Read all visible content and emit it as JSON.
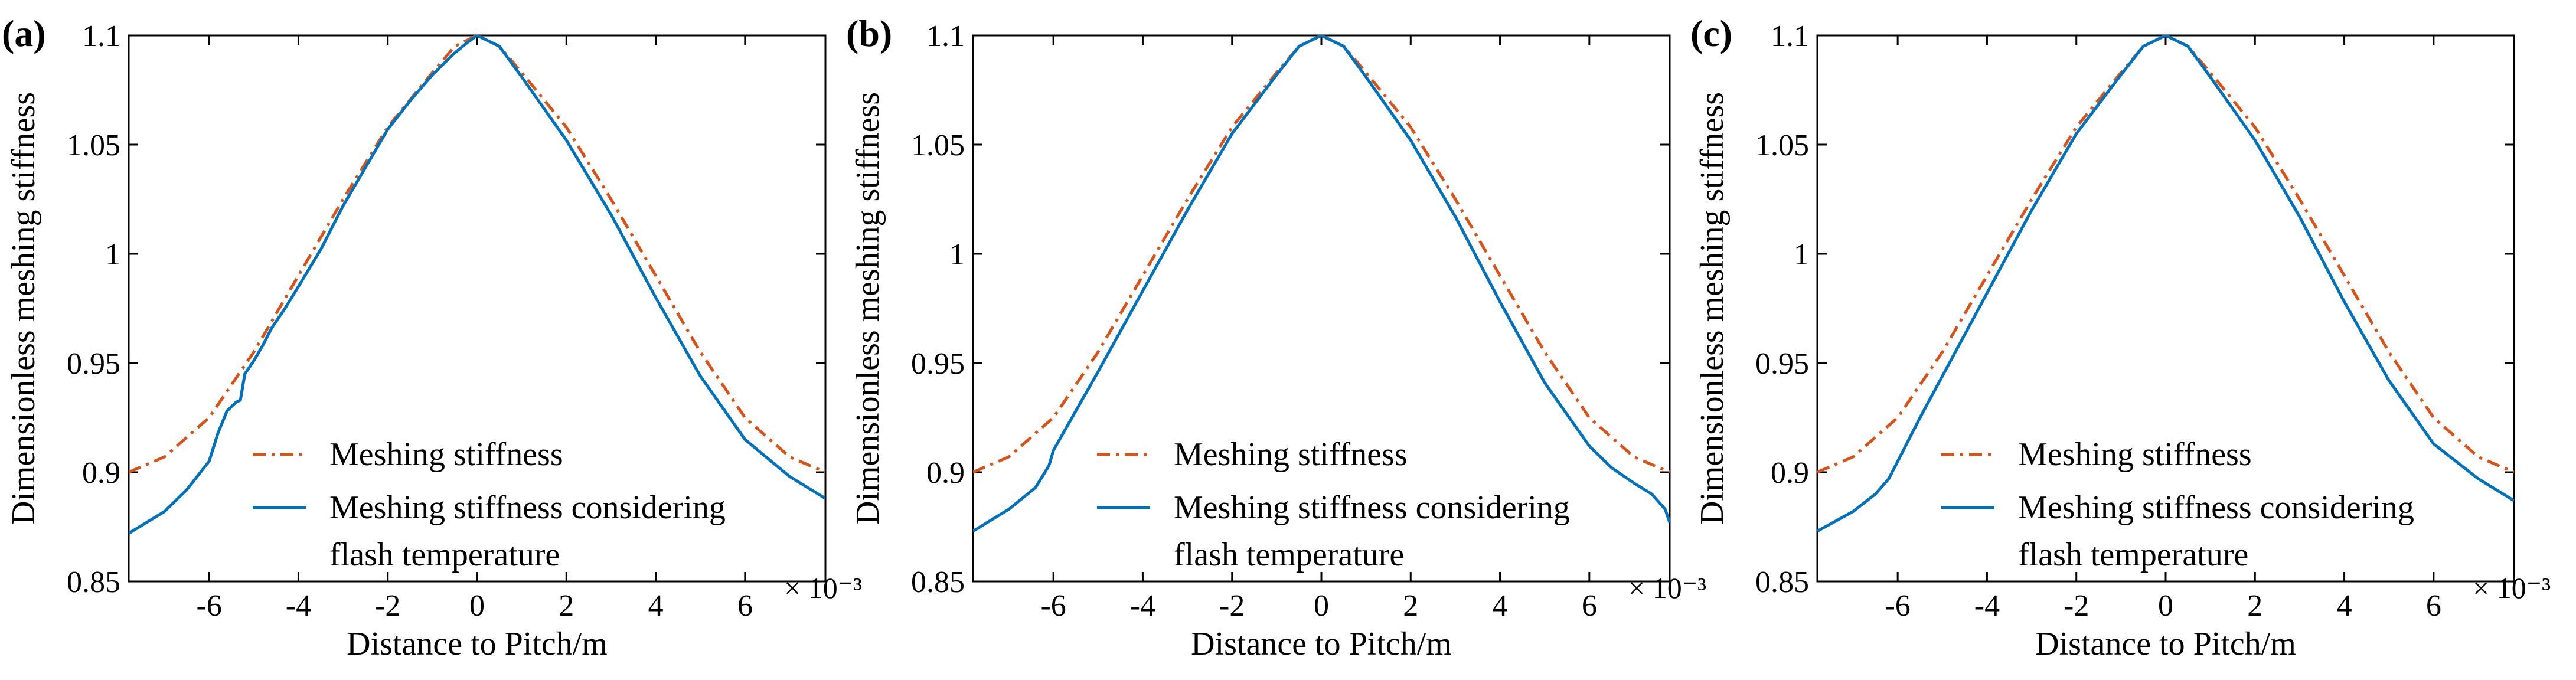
{
  "chart_data": [
    {
      "type": "line",
      "panel_label": "(a)",
      "xlabel": "Distance to Pitch/m",
      "ylabel": "Dimensionless meshing stiffness",
      "x_exponent": "× 10⁻³",
      "xlim": [
        -7.8,
        7.8
      ],
      "ylim": [
        0.85,
        1.1
      ],
      "xticks": [
        -6,
        -4,
        -2,
        0,
        2,
        4,
        6
      ],
      "xtick_labels": [
        "-6",
        "-4",
        "-2",
        "0",
        "2",
        "4",
        "6"
      ],
      "yticks": [
        0.85,
        0.9,
        0.95,
        1.0,
        1.05,
        1.1
      ],
      "ytick_labels": [
        "0.85",
        "0.9",
        "0.95",
        "1",
        "1.05",
        "1.1"
      ],
      "legend_position": "bottom-left",
      "series": [
        {
          "name": "Meshing stiffness",
          "legend_lines": [
            "Meshing stiffness"
          ],
          "color": "#D95319",
          "style": "dashdot",
          "x": [
            -7.8,
            -7,
            -6,
            -5,
            -4,
            -3,
            -2,
            -1,
            -0.5,
            0,
            0.5,
            1,
            2,
            3,
            4,
            5,
            6,
            7,
            7.8
          ],
          "y": [
            0.9,
            0.907,
            0.925,
            0.955,
            0.99,
            1.025,
            1.058,
            1.083,
            1.095,
            1.1,
            1.095,
            1.083,
            1.058,
            1.025,
            0.99,
            0.955,
            0.925,
            0.907,
            0.9
          ]
        },
        {
          "name": "Meshing stiffness considering flash temperature",
          "legend_lines": [
            "Meshing stiffness considering",
            "flash temperature"
          ],
          "color": "#0072BD",
          "style": "solid",
          "x": [
            -7.8,
            -7,
            -6.5,
            -6.0,
            -5.8,
            -5.6,
            -5.4,
            -5.3,
            -5.2,
            -5.0,
            -4.8,
            -4.6,
            -4.3,
            -4.0,
            -3.5,
            -3.0,
            -2.0,
            -1.5,
            -1.0,
            -0.5,
            -0.2,
            0,
            0.5,
            1,
            2,
            3,
            4,
            5,
            6,
            7,
            7.8
          ],
          "y": [
            0.872,
            0.882,
            0.892,
            0.905,
            0.918,
            0.928,
            0.932,
            0.933,
            0.945,
            0.951,
            0.958,
            0.966,
            0.975,
            0.985,
            1.002,
            1.022,
            1.057,
            1.07,
            1.082,
            1.092,
            1.097,
            1.1,
            1.095,
            1.081,
            1.052,
            1.018,
            0.98,
            0.944,
            0.915,
            0.898,
            0.888
          ]
        }
      ]
    },
    {
      "type": "line",
      "panel_label": "(b)",
      "xlabel": "Distance to Pitch/m",
      "ylabel": "Dimensionless meshing stiffness",
      "x_exponent": "× 10⁻³",
      "xlim": [
        -7.8,
        7.8
      ],
      "ylim": [
        0.85,
        1.1
      ],
      "xticks": [
        -6,
        -4,
        -2,
        0,
        2,
        4,
        6
      ],
      "xtick_labels": [
        "-6",
        "-4",
        "-2",
        "0",
        "2",
        "4",
        "6"
      ],
      "yticks": [
        0.85,
        0.9,
        0.95,
        1.0,
        1.05,
        1.1
      ],
      "ytick_labels": [
        "0.85",
        "0.9",
        "0.95",
        "1",
        "1.05",
        "1.1"
      ],
      "legend_position": "bottom-left",
      "series": [
        {
          "name": "Meshing stiffness",
          "legend_lines": [
            "Meshing stiffness"
          ],
          "color": "#D95319",
          "style": "dashdot",
          "x": [
            -7.8,
            -7,
            -6,
            -5,
            -4,
            -3,
            -2,
            -1,
            -0.5,
            0,
            0.5,
            1,
            2,
            3,
            4,
            5,
            6,
            7,
            7.8
          ],
          "y": [
            0.9,
            0.907,
            0.925,
            0.955,
            0.99,
            1.025,
            1.058,
            1.083,
            1.095,
            1.1,
            1.095,
            1.083,
            1.058,
            1.025,
            0.99,
            0.955,
            0.925,
            0.907,
            0.9
          ]
        },
        {
          "name": "Meshing stiffness considering flash temperature",
          "legend_lines": [
            "Meshing stiffness considering",
            "flash temperature"
          ],
          "color": "#0072BD",
          "style": "solid",
          "x": [
            -7.8,
            -7,
            -6.4,
            -6.1,
            -6.0,
            -5.5,
            -5.0,
            -4.0,
            -3.0,
            -2.0,
            -1.0,
            -0.5,
            0,
            0.5,
            1,
            2,
            3,
            4,
            5,
            6,
            6.5,
            7,
            7.4,
            7.7,
            7.8
          ],
          "y": [
            0.873,
            0.883,
            0.893,
            0.903,
            0.91,
            0.928,
            0.946,
            0.983,
            1.02,
            1.055,
            1.082,
            1.095,
            1.1,
            1.095,
            1.081,
            1.052,
            1.017,
            0.978,
            0.941,
            0.912,
            0.902,
            0.895,
            0.89,
            0.883,
            0.877
          ]
        }
      ]
    },
    {
      "type": "line",
      "panel_label": "(c)",
      "xlabel": "Distance to Pitch/m",
      "ylabel": "Dimensionless meshing stiffness",
      "x_exponent": "× 10⁻³",
      "xlim": [
        -7.8,
        7.8
      ],
      "ylim": [
        0.85,
        1.1
      ],
      "xticks": [
        -6,
        -4,
        -2,
        0,
        2,
        4,
        6
      ],
      "xtick_labels": [
        "-6",
        "-4",
        "-2",
        "0",
        "2",
        "4",
        "6"
      ],
      "yticks": [
        0.85,
        0.9,
        0.95,
        1.0,
        1.05,
        1.1
      ],
      "ytick_labels": [
        "0.85",
        "0.9",
        "0.95",
        "1",
        "1.05",
        "1.1"
      ],
      "legend_position": "bottom-left",
      "series": [
        {
          "name": "Meshing stiffness",
          "legend_lines": [
            "Meshing stiffness"
          ],
          "color": "#D95319",
          "style": "dashdot",
          "x": [
            -7.8,
            -7,
            -6,
            -5,
            -4,
            -3,
            -2,
            -1,
            -0.5,
            0,
            0.5,
            1,
            2,
            3,
            4,
            5,
            6,
            7,
            7.8
          ],
          "y": [
            0.9,
            0.907,
            0.925,
            0.955,
            0.99,
            1.025,
            1.058,
            1.083,
            1.095,
            1.1,
            1.095,
            1.083,
            1.058,
            1.025,
            0.99,
            0.955,
            0.925,
            0.907,
            0.9
          ]
        },
        {
          "name": "Meshing stiffness considering flash temperature",
          "legend_lines": [
            "Meshing stiffness considering",
            "flash temperature"
          ],
          "color": "#0072BD",
          "style": "solid",
          "x": [
            -7.8,
            -7,
            -6.5,
            -6.2,
            -6.0,
            -5.5,
            -5.0,
            -4.0,
            -3.0,
            -2.0,
            -1.0,
            -0.5,
            0,
            0.5,
            1,
            2,
            3,
            4,
            5,
            6,
            7,
            7.8
          ],
          "y": [
            0.873,
            0.882,
            0.89,
            0.897,
            0.905,
            0.925,
            0.944,
            0.982,
            1.02,
            1.055,
            1.082,
            1.095,
            1.1,
            1.095,
            1.081,
            1.052,
            1.017,
            0.978,
            0.942,
            0.913,
            0.897,
            0.887
          ]
        }
      ]
    }
  ]
}
